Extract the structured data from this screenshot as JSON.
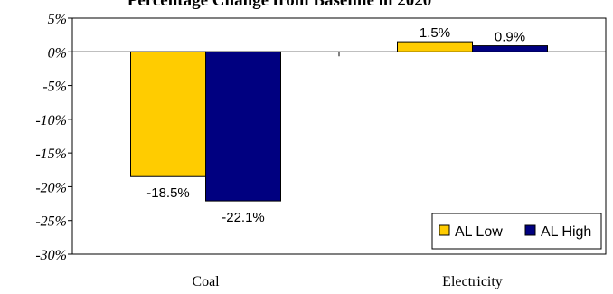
{
  "chart_data": {
    "type": "bar",
    "title": "Percentage Change from Baseline in 2020",
    "categories": [
      "Coal",
      "Electricity"
    ],
    "series": [
      {
        "name": "AL Low",
        "values": [
          -18.5,
          1.5
        ],
        "color": "#FFCC00",
        "labels": [
          "-18.5%",
          "1.5%"
        ]
      },
      {
        "name": "AL High",
        "values": [
          -22.1,
          0.9
        ],
        "color": "#000080",
        "labels": [
          "-22.1%",
          "0.9%"
        ]
      }
    ],
    "y_ticks": [
      5,
      0,
      -5,
      -10,
      -15,
      -20,
      -25,
      -30
    ],
    "y_tick_labels": [
      "5%",
      "0%",
      "-5%",
      "-10%",
      "-15%",
      "-20%",
      "-25%",
      "-30%"
    ],
    "ylim": [
      -30,
      5
    ],
    "xlabel": "",
    "ylabel": "",
    "grid": false,
    "legend": "bottom-right"
  }
}
